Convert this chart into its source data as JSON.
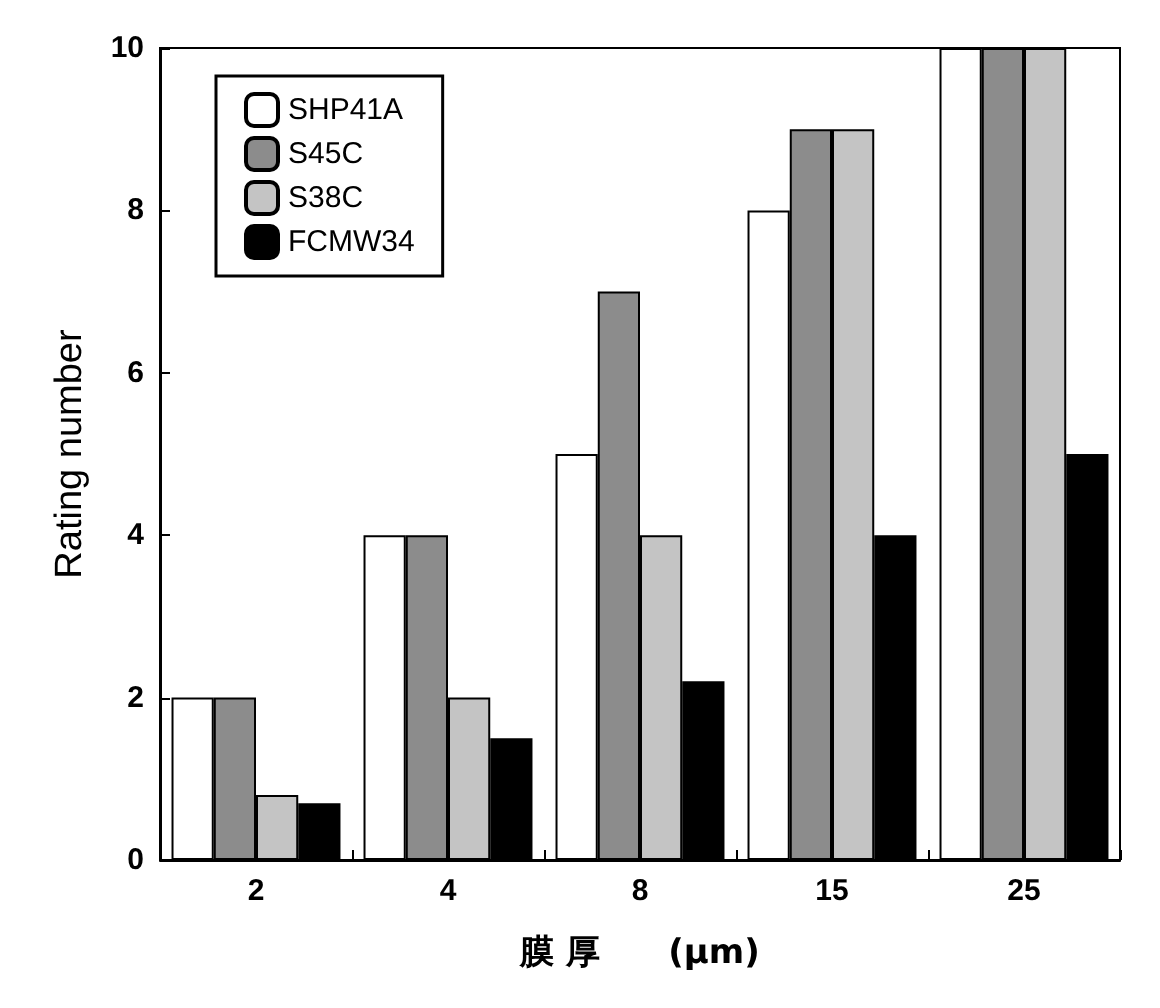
{
  "chart_data": {
    "type": "bar",
    "xlabel": "膜 厚　　(μm)",
    "ylabel": "Rating number",
    "categories": [
      "2",
      "4",
      "8",
      "15",
      "25"
    ],
    "series": [
      {
        "name": "SHP41A",
        "color": "#ffffff",
        "values": [
          2,
          4,
          5,
          8,
          10
        ]
      },
      {
        "name": "S45C",
        "color": "#8c8c8c",
        "values": [
          2,
          4,
          7,
          9,
          10
        ]
      },
      {
        "name": "S38C",
        "color": "#c4c4c4",
        "values": [
          0.8,
          2,
          4,
          9,
          10
        ]
      },
      {
        "name": "FCMW34",
        "color": "#000000",
        "values": [
          0.7,
          1.5,
          2.2,
          4,
          5
        ]
      }
    ],
    "ylim": [
      0,
      10
    ],
    "yticks": [
      0,
      2,
      4,
      6,
      8,
      10
    ],
    "grid": false,
    "legend": "top left"
  }
}
